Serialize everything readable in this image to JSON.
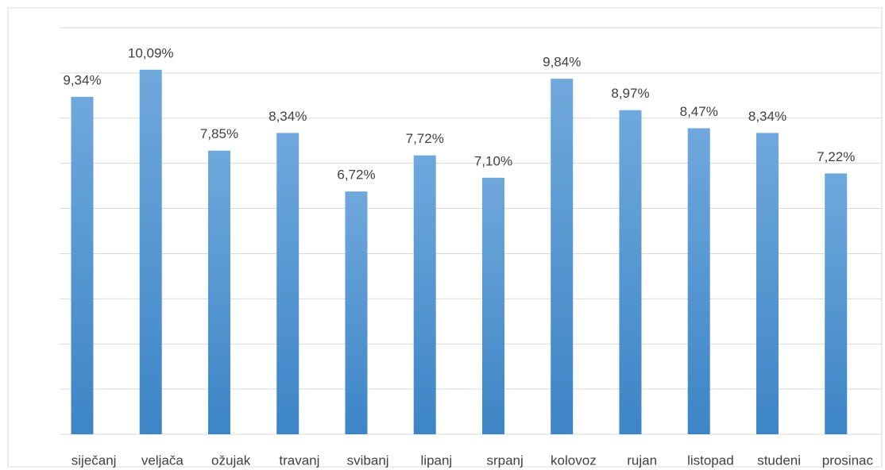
{
  "chart_data": {
    "type": "bar",
    "categories": [
      "siječanj",
      "veljača",
      "ožujak",
      "travanj",
      "svibanj",
      "lipanj",
      "srpanj",
      "kolovoz",
      "rujan",
      "listopad",
      "studeni",
      "prosinac"
    ],
    "values": [
      9.34,
      10.09,
      7.85,
      8.34,
      6.72,
      7.72,
      7.1,
      9.84,
      8.97,
      8.47,
      8.34,
      7.22
    ],
    "value_labels": [
      "9,34%",
      "10,09%",
      "7,85%",
      "8,34%",
      "6,72%",
      "7,72%",
      "7,10%",
      "9,84%",
      "8,97%",
      "8,47%",
      "8,34%",
      "7,22%"
    ],
    "color": "#5b9bd5",
    "ylim": [
      0,
      11.25
    ],
    "yticks": [
      0,
      1.25,
      2.5,
      3.75,
      5,
      6.25,
      7.5,
      8.75,
      10,
      11.25
    ],
    "grid": true
  }
}
